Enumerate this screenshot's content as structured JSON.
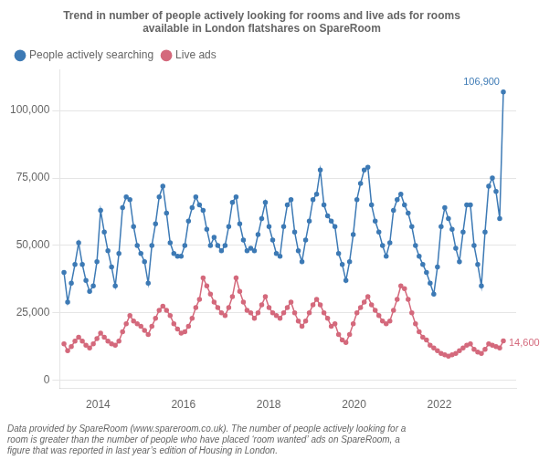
{
  "chart_data": {
    "type": "line",
    "title": "Trend in number of people actively looking for rooms and live ads for rooms\navailable in London flatshares on SpareRoom",
    "footnote": "Data provided by SpareRoom (www.spareroom.co.uk). The number of people actively looking for a\nroom is greater than the number of people who have placed ‘room wanted’ ads on SpareRoom, a\nfigure that was reported in last year’s edition of Housing in London.",
    "x": [
      2013.2,
      2013.2858,
      2013.3717,
      2013.4575,
      2013.5433,
      2013.6292,
      2013.715,
      2013.8008,
      2013.8867,
      2013.9725,
      2014.0583,
      2014.1442,
      2014.23,
      2014.3158,
      2014.4017,
      2014.4875,
      2014.5733,
      2014.6592,
      2014.745,
      2014.8308,
      2014.9167,
      2015.0025,
      2015.0883,
      2015.1742,
      2015.26,
      2015.3458,
      2015.4317,
      2015.5175,
      2015.6033,
      2015.6892,
      2015.775,
      2015.8608,
      2015.9467,
      2016.0325,
      2016.1183,
      2016.2042,
      2016.29,
      2016.3758,
      2016.4617,
      2016.5475,
      2016.6333,
      2016.7192,
      2016.805,
      2016.8908,
      2016.9767,
      2017.0625,
      2017.1483,
      2017.2342,
      2017.32,
      2017.4058,
      2017.4917,
      2017.5775,
      2017.6633,
      2017.7492,
      2017.835,
      2017.9208,
      2018.0067,
      2018.0925,
      2018.1783,
      2018.2642,
      2018.35,
      2018.4358,
      2018.5217,
      2018.6075,
      2018.6933,
      2018.7792,
      2018.865,
      2018.9508,
      2019.0367,
      2019.1225,
      2019.2083,
      2019.2942,
      2019.38,
      2019.4658,
      2019.5517,
      2019.6375,
      2019.7233,
      2019.8092,
      2019.895,
      2019.9808,
      2020.0667,
      2020.1525,
      2020.2383,
      2020.3242,
      2020.41,
      2020.4958,
      2020.5817,
      2020.6675,
      2020.7533,
      2020.8392,
      2020.925,
      2021.0108,
      2021.0967,
      2021.1825,
      2021.2683,
      2021.3542,
      2021.44,
      2021.5258,
      2021.6117,
      2021.6975,
      2021.7833,
      2021.8692,
      2021.955,
      2022.0408,
      2022.1267,
      2022.2125,
      2022.2983,
      2022.3842,
      2022.47,
      2022.5558,
      2022.6417,
      2022.7275,
      2022.8133,
      2022.8992,
      2022.985,
      2023.0708,
      2023.1567,
      2023.2425,
      2023.3283,
      2023.4142,
      2023.5
    ],
    "series": [
      {
        "name": "People actively searching",
        "color": "#3d7ab5",
        "marker": "circle",
        "values": [
          40000,
          29000,
          36000,
          43000,
          51000,
          43000,
          37000,
          33000,
          35000,
          44000,
          63000,
          55000,
          48000,
          42000,
          35000,
          47000,
          64000,
          68000,
          67000,
          57000,
          50000,
          47000,
          44000,
          36000,
          50000,
          58000,
          68000,
          72000,
          62000,
          51000,
          47000,
          46000,
          46000,
          50000,
          59000,
          64000,
          68000,
          65000,
          63000,
          56000,
          50000,
          53000,
          50000,
          48000,
          50000,
          57000,
          66000,
          68000,
          58000,
          52000,
          48000,
          49000,
          48000,
          54000,
          60000,
          66000,
          57000,
          52000,
          47000,
          46000,
          57000,
          65000,
          67000,
          55000,
          48000,
          44000,
          52000,
          59000,
          67000,
          69000,
          78000,
          65000,
          61000,
          59000,
          57000,
          47000,
          43000,
          37000,
          44000,
          54000,
          67000,
          73000,
          78000,
          79000,
          65000,
          59000,
          55000,
          50000,
          46000,
          51000,
          63000,
          67000,
          69000,
          65000,
          62000,
          57000,
          50000,
          46000,
          43000,
          40000,
          36000,
          32000,
          42000,
          57000,
          64000,
          60000,
          56000,
          49000,
          44000,
          55000,
          65000,
          65000,
          50000,
          43000,
          35000,
          55000,
          72000,
          75000,
          70000,
          60000,
          106900
        ]
      },
      {
        "name": "Live ads",
        "color": "#d4697c",
        "marker": "circle",
        "values": [
          13500,
          11000,
          12500,
          14500,
          16000,
          14500,
          13000,
          12000,
          13500,
          15500,
          17500,
          16000,
          14500,
          13500,
          13000,
          14500,
          18000,
          21000,
          24000,
          22000,
          21000,
          20000,
          18500,
          17000,
          20000,
          23000,
          26000,
          27500,
          26000,
          24000,
          21000,
          19000,
          17500,
          18000,
          20000,
          23000,
          27000,
          30000,
          38000,
          35000,
          32000,
          29000,
          27000,
          25000,
          24000,
          27000,
          31000,
          38000,
          33000,
          29000,
          26000,
          25000,
          23000,
          25000,
          28000,
          31000,
          27000,
          25000,
          24000,
          23000,
          25000,
          27000,
          29000,
          25000,
          22000,
          20000,
          22000,
          25000,
          28000,
          30000,
          28000,
          25000,
          23000,
          20000,
          21000,
          17000,
          15000,
          14000,
          17000,
          21000,
          25000,
          27000,
          29000,
          31000,
          28000,
          26000,
          24000,
          22000,
          21000,
          22000,
          26000,
          30000,
          35000,
          34000,
          30000,
          25000,
          21000,
          18000,
          16000,
          15000,
          13000,
          12000,
          11000,
          10000,
          9500,
          9000,
          9500,
          10000,
          11000,
          12000,
          13000,
          13500,
          11500,
          10500,
          10000,
          11500,
          13500,
          13000,
          12500,
          12000,
          14600
        ]
      }
    ],
    "xlim": [
      2013.1,
      2023.8
    ],
    "xticks": [
      2014,
      2016,
      2018,
      2020,
      2022
    ],
    "ylim": [
      -3000,
      115000
    ],
    "yticks": [
      0,
      {
        "value": 25000,
        "label": "25,000"
      },
      {
        "value": 50000,
        "label": "50,000"
      },
      {
        "value": 75000,
        "label": "75,000"
      },
      {
        "value": 100000,
        "label": "100,000"
      }
    ],
    "grid": true,
    "legend": "upper left",
    "annotations": [
      {
        "text": "106,900",
        "x": 2023.5,
        "y": 106900,
        "color": "#3d7ab5"
      },
      {
        "text": "14,600",
        "x": 2023.5,
        "y": 14600,
        "color": "#d4697c"
      }
    ]
  }
}
